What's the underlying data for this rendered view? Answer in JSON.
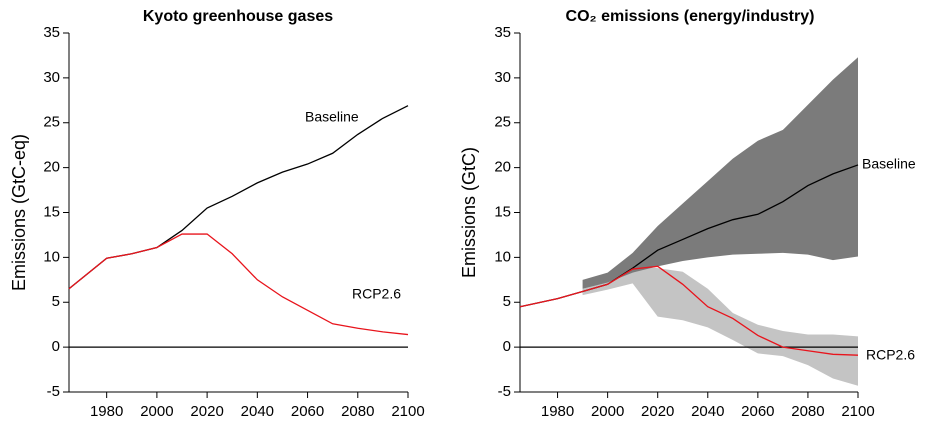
{
  "chart_data": [
    {
      "type": "line",
      "title": "Kyoto greenhouse gases",
      "y_label": "Emissions (GtC-eq)",
      "x": [
        1965,
        1980,
        1990,
        2000,
        2010,
        2020,
        2030,
        2040,
        2050,
        2060,
        2070,
        2080,
        2090,
        2100
      ],
      "series": [
        {
          "name": "Baseline",
          "color": "#000000",
          "values": [
            6.5,
            9.9,
            10.4,
            11.1,
            13,
            15.5,
            16.8,
            18.3,
            19.5,
            20.4,
            21.6,
            23.7,
            25.5,
            26.9
          ]
        },
        {
          "name": "RCP2.6",
          "color": "#e8141c",
          "values": [
            6.5,
            9.9,
            10.4,
            11.1,
            12.6,
            12.6,
            10.4,
            7.5,
            5.6,
            4.1,
            2.6,
            2.1,
            1.7,
            1.4
          ]
        }
      ],
      "xlim": [
        1965,
        2100
      ],
      "xticks": [
        1980,
        2000,
        2020,
        2040,
        2060,
        2080,
        2100
      ],
      "ylim": [
        -5,
        35
      ],
      "yticks": [
        -5,
        0,
        5,
        10,
        15,
        20,
        25,
        30,
        35
      ],
      "zero_line": true
    },
    {
      "type": "line",
      "title": "CO₂ emissions (energy/industry)",
      "y_label": "Emissions (GtC)",
      "x": [
        1965,
        1980,
        1990,
        2000,
        2010,
        2020,
        2030,
        2040,
        2050,
        2060,
        2070,
        2080,
        2090,
        2100
      ],
      "bands": [
        {
          "color": "#c4c4c4",
          "x": [
            1990,
            2000,
            2010,
            2020,
            2030,
            2040,
            2050,
            2060,
            2070,
            2080,
            2090,
            2100
          ],
          "lower": [
            5.8,
            6.4,
            7.1,
            3.4,
            3,
            2.2,
            0.8,
            -0.7,
            -1,
            -2,
            -3.5,
            -4.3
          ],
          "upper": [
            6.5,
            7.3,
            9,
            8.8,
            8.4,
            6.5,
            3.8,
            2.5,
            1.8,
            1.4,
            1.4,
            1.2
          ]
        },
        {
          "color": "#7b7b7b",
          "x": [
            1990,
            2000,
            2010,
            2020,
            2030,
            2040,
            2050,
            2060,
            2070,
            2080,
            2090,
            2100
          ],
          "lower": [
            6.5,
            7.2,
            8.3,
            9,
            9.6,
            10,
            10.3,
            10.4,
            10.5,
            10.3,
            9.7,
            10.1
          ],
          "upper": [
            7.5,
            8.3,
            10.5,
            13.5,
            16,
            18.5,
            21,
            23,
            24.2,
            27,
            29.8,
            32.3
          ]
        }
      ],
      "series": [
        {
          "name": "Baseline",
          "color": "#000000",
          "values": [
            4.5,
            5.4,
            6.2,
            7,
            8.8,
            10.8,
            12,
            13.2,
            14.2,
            14.8,
            16.2,
            18,
            19.3,
            20.3
          ]
        },
        {
          "name": "RCP2.6",
          "color": "#e8141c",
          "values": [
            4.5,
            5.4,
            6.2,
            7,
            8.7,
            9,
            7,
            4.5,
            3.2,
            1.3,
            0,
            -0.4,
            -0.8,
            -0.9
          ]
        }
      ],
      "xlim": [
        1965,
        2100
      ],
      "xticks": [
        1980,
        2000,
        2020,
        2040,
        2060,
        2080,
        2100
      ],
      "ylim": [
        -5,
        35
      ],
      "yticks": [
        -5,
        0,
        5,
        10,
        15,
        20,
        25,
        30,
        35
      ],
      "zero_line": true
    }
  ]
}
